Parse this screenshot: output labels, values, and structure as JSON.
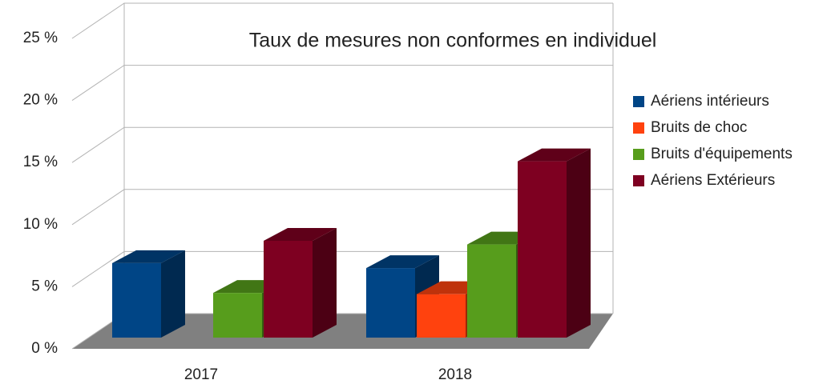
{
  "chart_data": {
    "type": "bar3d",
    "title": "Taux de mesures non conformes en individuel",
    "categories": [
      "2017",
      "2018"
    ],
    "series": [
      {
        "name": "Aériens intérieurs",
        "color": "#004586",
        "values": [
          6.0,
          5.6
        ]
      },
      {
        "name": "Bruits de choc",
        "color": "#ff420e",
        "values": [
          null,
          3.5
        ]
      },
      {
        "name": "Bruits d'équipements",
        "color": "#579d1c",
        "values": [
          3.6,
          7.5
        ]
      },
      {
        "name": "Aériens Extérieurs",
        "color": "#7e0021",
        "values": [
          7.8,
          14.2
        ]
      }
    ],
    "ylim": [
      0,
      25
    ],
    "yticks": [
      {
        "value": 0,
        "label": "0 %"
      },
      {
        "value": 5,
        "label": "5 %"
      },
      {
        "value": 10,
        "label": "10 %"
      },
      {
        "value": 15,
        "label": "15 %"
      },
      {
        "value": 20,
        "label": "20 %"
      },
      {
        "value": 25,
        "label": "25 %"
      }
    ],
    "grid": true,
    "legend": "right"
  }
}
